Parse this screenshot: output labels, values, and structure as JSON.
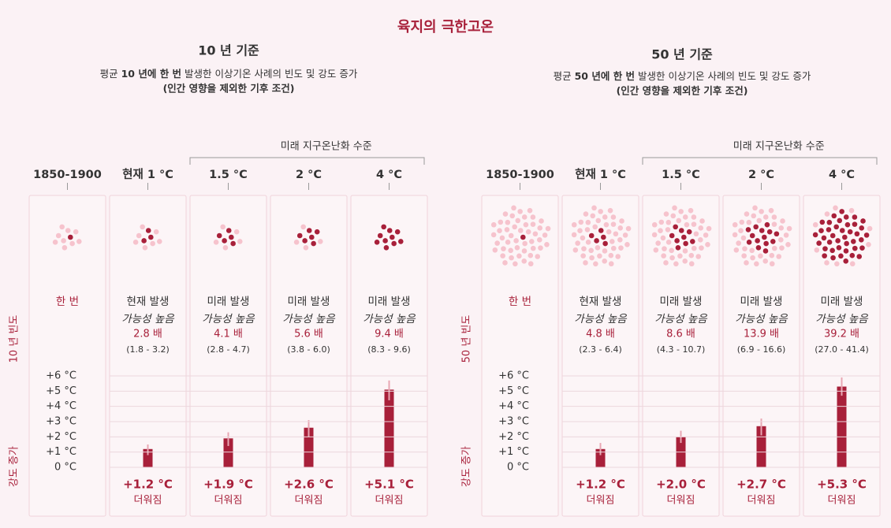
{
  "title": "육지의 극한고온",
  "chart_data": [
    {
      "type": "bar",
      "title": "10 년 기준",
      "period": 10,
      "subtitle_parts": [
        "평균 ",
        "10 년에 한 번",
        " 발생한 이상기온 사례의 빈도 및 강도 증가"
      ],
      "note": "(인간 영향을 제외한 기후 조건)",
      "group_label": "미래 지구온난화 수준",
      "frequency_label": "10 년 빈도",
      "y_label": "강도 증가",
      "categories": [
        "1850-1900",
        "현재 1 °C",
        "1.5 °C",
        "2 °C",
        "4 °C"
      ],
      "frequency": {
        "values": [
          1,
          2.8,
          4.1,
          5.6,
          9.4
        ],
        "line1": [
          "한 번",
          "현재 발생",
          "미래 발생",
          "미래 발생",
          "미래 발생"
        ],
        "line2": [
          null,
          "가능성 높음",
          "가능성 높음",
          "가능성 높음",
          "가능성 높음"
        ],
        "value_labels": [
          null,
          "2.8 배",
          "4.1 배",
          "5.6 배",
          "9.4 배"
        ],
        "ranges": [
          null,
          "(1.8 - 3.2)",
          "(2.8 - 4.7)",
          "(3.8 - 6.0)",
          "(8.3 - 9.6)"
        ]
      },
      "values": [
        null,
        1.2,
        1.9,
        2.6,
        5.1
      ],
      "errors": [
        null,
        [
          0.8,
          1.5
        ],
        [
          1.4,
          2.3
        ],
        [
          2.0,
          3.1
        ],
        [
          4.4,
          5.7
        ]
      ],
      "value_labels": [
        null,
        "+1.2 °C",
        "+1.9 °C",
        "+2.6 °C",
        "+5.1 °C"
      ],
      "value_note": "더워짐",
      "color": "#a8203a",
      "light_color": "#f6c3cd",
      "ylim": [
        0,
        6
      ],
      "yticks": [
        {
          "value": 0,
          "label": "0 °C"
        },
        {
          "value": 1,
          "label": "+1 °C"
        },
        {
          "value": 2,
          "label": "+2 °C"
        },
        {
          "value": 3,
          "label": "+3 °C"
        },
        {
          "value": 4,
          "label": "+4 °C"
        },
        {
          "value": 5,
          "label": "+5 °C"
        },
        {
          "value": 6,
          "label": "+6 °C"
        }
      ],
      "grid": true
    },
    {
      "type": "bar",
      "title": "50 년 기준",
      "period": 50,
      "subtitle_parts": [
        "평균 ",
        "50 년에 한 번",
        " 발생한 이상기온 사례의 빈도 및 강도 증가"
      ],
      "note": "(인간 영향을 제외한 기후 조건)",
      "group_label": "미래 지구온난화 수준",
      "frequency_label": "50 년 빈도",
      "y_label": "강도 증가",
      "categories": [
        "1850-1900",
        "현재 1 °C",
        "1.5 °C",
        "2 °C",
        "4 °C"
      ],
      "frequency": {
        "values": [
          1,
          4.8,
          8.6,
          13.9,
          39.2
        ],
        "line1": [
          "한 번",
          "현재 발생",
          "미래 발생",
          "미래 발생",
          "미래 발생"
        ],
        "line2": [
          null,
          "가능성 높음",
          "가능성 높음",
          "가능성 높음",
          "가능성 높음"
        ],
        "value_labels": [
          null,
          "4.8 배",
          "8.6 배",
          "13.9 배",
          "39.2 배"
        ],
        "ranges": [
          null,
          "(2.3 - 6.4)",
          "(4.3 - 10.7)",
          "(6.9 - 16.6)",
          "(27.0 - 41.4)"
        ]
      },
      "values": [
        null,
        1.2,
        2.0,
        2.7,
        5.3
      ],
      "errors": [
        null,
        [
          0.8,
          1.6
        ],
        [
          1.6,
          2.4
        ],
        [
          2.1,
          3.2
        ],
        [
          4.7,
          5.9
        ]
      ],
      "value_labels": [
        null,
        "+1.2 °C",
        "+2.0 °C",
        "+2.7 °C",
        "+5.3 °C"
      ],
      "value_note": "더워짐",
      "color": "#a8203a",
      "light_color": "#f6c3cd",
      "ylim": [
        0,
        6
      ],
      "yticks": [
        {
          "value": 0,
          "label": "0 °C"
        },
        {
          "value": 1,
          "label": "+1 °C"
        },
        {
          "value": 2,
          "label": "+2 °C"
        },
        {
          "value": 3,
          "label": "+3 °C"
        },
        {
          "value": 4,
          "label": "+4 °C"
        },
        {
          "value": 5,
          "label": "+5 °C"
        },
        {
          "value": 6,
          "label": "+6 °C"
        }
      ],
      "grid": true
    }
  ]
}
